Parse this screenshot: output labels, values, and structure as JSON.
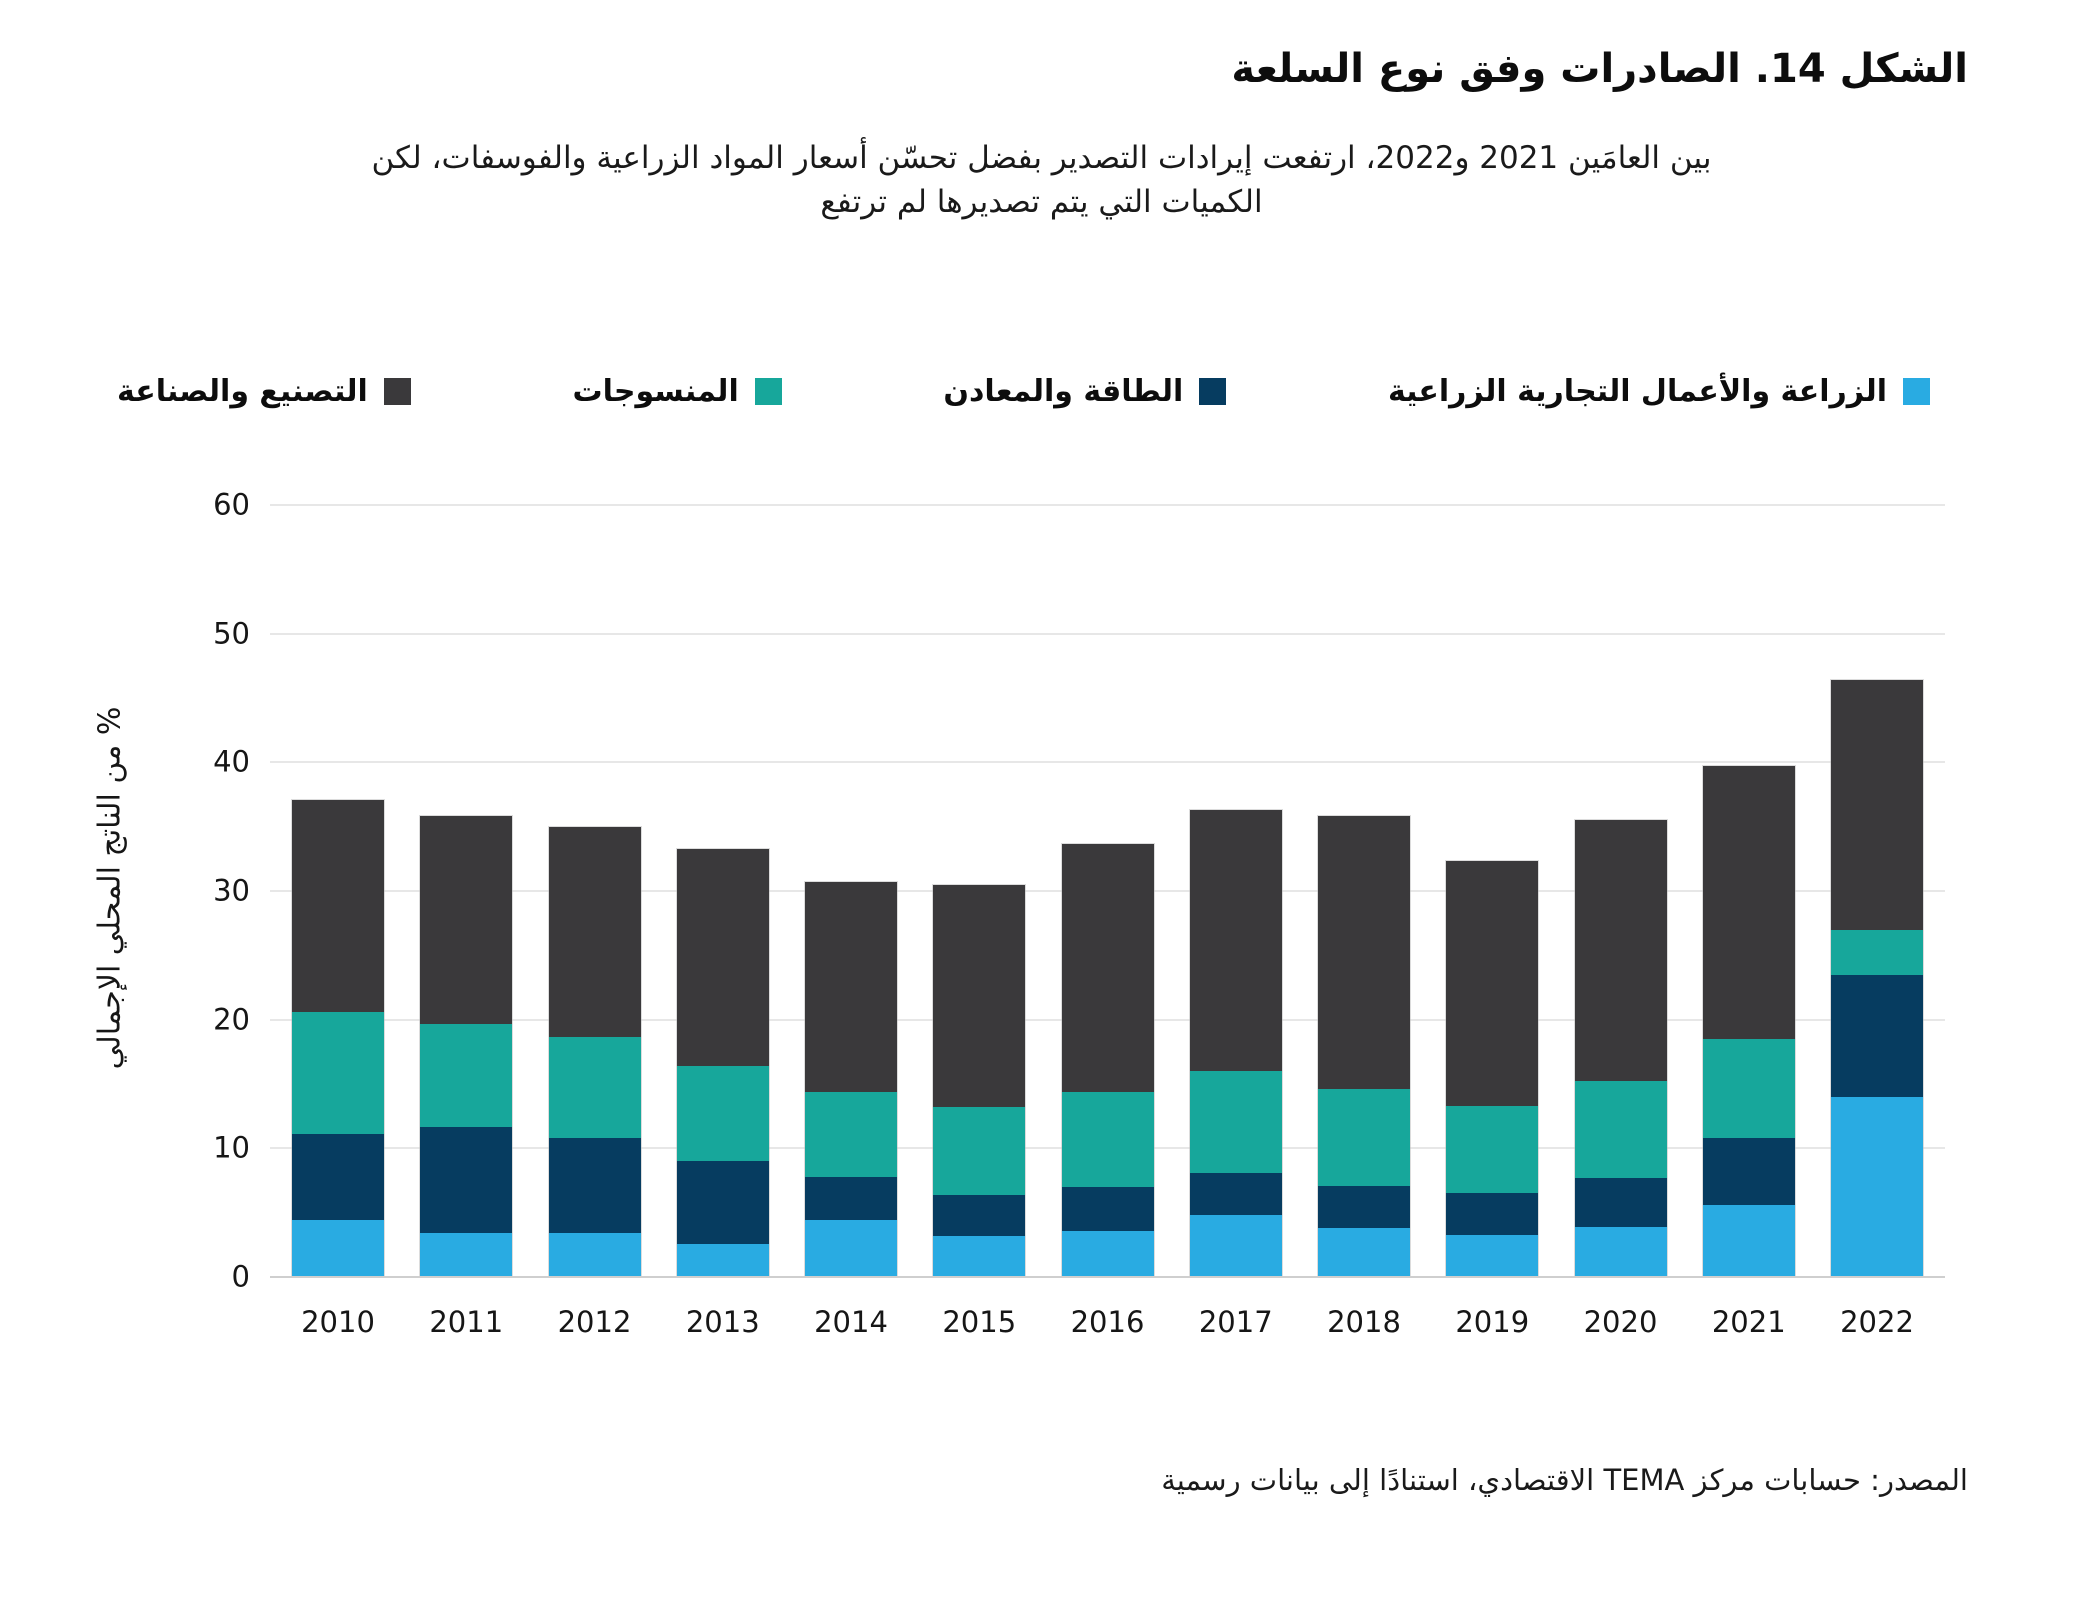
{
  "figure": {
    "title": "الشكل 14. الصادرات وفق نوع السلعة",
    "subtitle": "بين العامَين 2021 و2022، ارتفعت إيرادات التصدير بفضل تحسّن أسعار المواد الزراعية والفوسفات، لكن\nالكميات التي يتم تصديرها لم ترتفع",
    "source": "المصدر: حسابات مركز TEMA الاقتصادي، استنادًا إلى بيانات رسمية"
  },
  "legend": [
    {
      "key": "agriculture",
      "label": "الزراعة والأعمال التجارية الزراعية",
      "color": "#29ABE2"
    },
    {
      "key": "energy",
      "label": "الطاقة والمعادن",
      "color": "#063C60"
    },
    {
      "key": "textiles",
      "label": "المنسوجات",
      "color": "#17A79B"
    },
    {
      "key": "manufacturing",
      "label": "التصنيع والصناعة",
      "color": "#3A393B"
    }
  ],
  "chart_data": {
    "type": "bar",
    "stacked": true,
    "title": "الشكل 14. الصادرات وفق نوع السلعة",
    "xlabel": "",
    "ylabel": "% من الناتج المحلي الإجمالي",
    "ylim": [
      0,
      60
    ],
    "yticks": [
      0,
      10,
      20,
      30,
      40,
      50,
      60
    ],
    "grid": true,
    "legend_position": "top",
    "categories": [
      "2010",
      "2011",
      "2012",
      "2013",
      "2014",
      "2015",
      "2016",
      "2017",
      "2018",
      "2019",
      "2020",
      "2021",
      "2022"
    ],
    "series": [
      {
        "name": "الزراعة والأعمال التجارية الزراعية",
        "key": "agriculture",
        "color": "#29ABE2",
        "values": [
          4.4,
          3.4,
          3.4,
          2.6,
          4.4,
          3.2,
          3.6,
          4.8,
          3.8,
          3.3,
          3.9,
          5.6,
          14.0
        ]
      },
      {
        "name": "الطاقة والمعادن",
        "key": "energy",
        "color": "#063C60",
        "values": [
          6.7,
          8.3,
          7.4,
          6.4,
          3.4,
          3.2,
          3.4,
          3.3,
          3.3,
          3.2,
          3.8,
          5.2,
          9.5
        ]
      },
      {
        "name": "المنسوجات",
        "key": "textiles",
        "color": "#17A79B",
        "values": [
          9.5,
          8.0,
          7.9,
          7.4,
          6.6,
          6.8,
          7.4,
          7.9,
          7.5,
          6.8,
          7.5,
          7.7,
          3.5
        ]
      },
      {
        "name": "التصنيع والصناعة",
        "key": "manufacturing",
        "color": "#3A393B",
        "values": [
          16.5,
          16.1,
          16.3,
          16.9,
          16.3,
          17.3,
          19.3,
          20.3,
          21.2,
          19.0,
          20.3,
          21.2,
          19.4
        ]
      }
    ],
    "totals": [
      37.1,
      35.8,
      35.0,
      33.3,
      30.7,
      30.5,
      33.7,
      36.3,
      35.8,
      32.3,
      35.5,
      39.7,
      46.4
    ]
  }
}
